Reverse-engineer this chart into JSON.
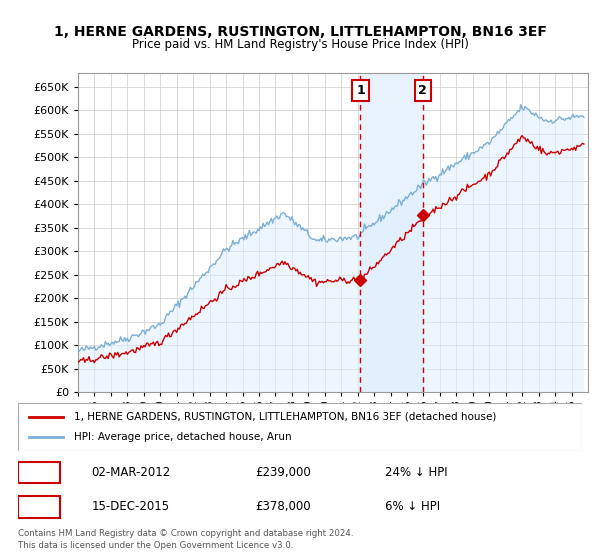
{
  "title": "1, HERNE GARDENS, RUSTINGTON, LITTLEHAMPTON, BN16 3EF",
  "subtitle": "Price paid vs. HM Land Registry's House Price Index (HPI)",
  "legend_line1": "1, HERNE GARDENS, RUSTINGTON, LITTLEHAMPTON, BN16 3EF (detached house)",
  "legend_line2": "HPI: Average price, detached house, Arun",
  "annotation1_label": "1",
  "annotation1_date": "02-MAR-2012",
  "annotation1_price": "£239,000",
  "annotation1_hpi": "24% ↓ HPI",
  "annotation1_year": 2012.17,
  "annotation1_value": 239000,
  "annotation2_label": "2",
  "annotation2_date": "15-DEC-2015",
  "annotation2_price": "£378,000",
  "annotation2_hpi": "6% ↓ HPI",
  "annotation2_year": 2015.96,
  "annotation2_value": 378000,
  "sale_color": "#cc0000",
  "hpi_color": "#7bafd4",
  "hpi_fill_color": "#ddeeff",
  "shade_fill_color": "#e8f2fc",
  "ylim_min": 0,
  "ylim_max": 680000,
  "xmin": 1995,
  "xmax": 2026,
  "footer_line1": "Contains HM Land Registry data © Crown copyright and database right 2024.",
  "footer_line2": "This data is licensed under the Open Government Licence v3.0.",
  "background_color": "#ffffff",
  "grid_color": "#cccccc"
}
